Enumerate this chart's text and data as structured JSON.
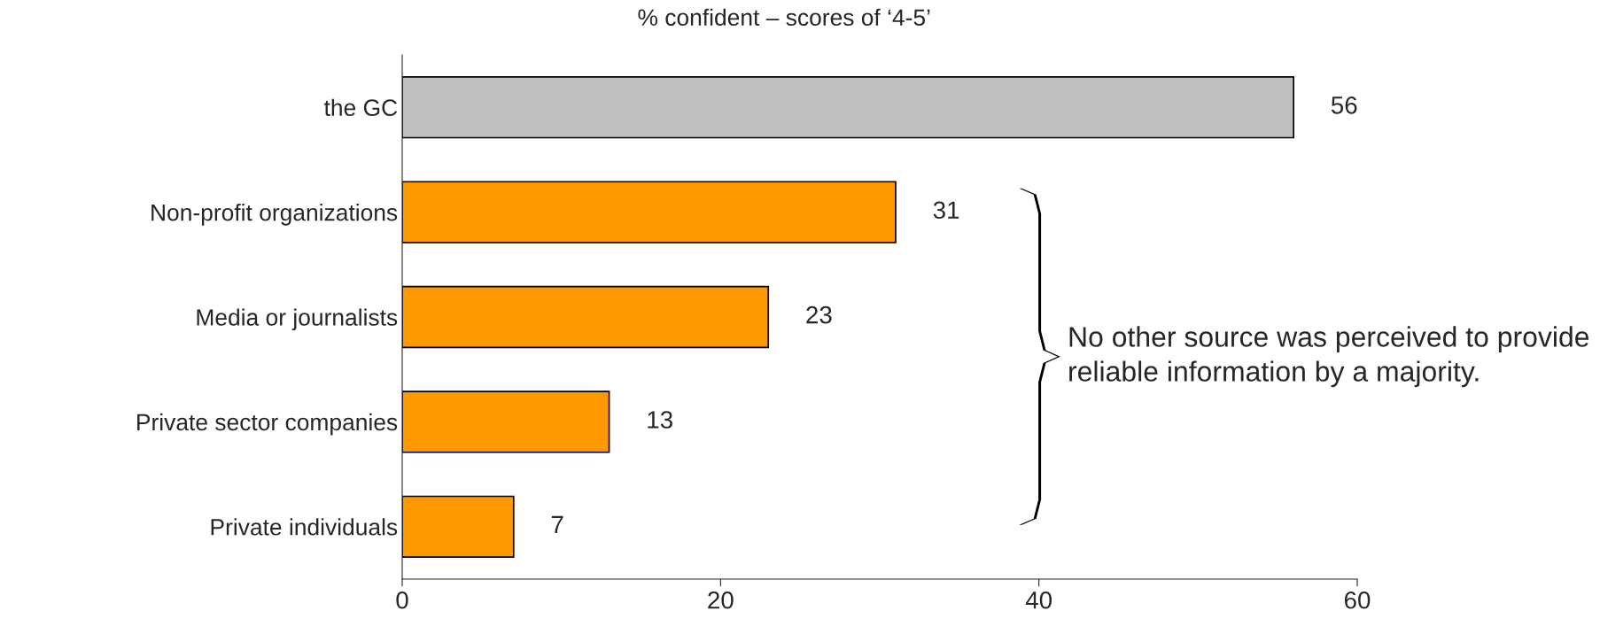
{
  "chart_data": {
    "type": "bar",
    "orientation": "horizontal",
    "title": "% confident – scores of ‘4-5’",
    "categories": [
      "the GC",
      "Non-profit organizations",
      "Media or journalists",
      "Private sector companies",
      "Private individuals"
    ],
    "values": [
      56,
      31,
      23,
      13,
      7
    ],
    "colors": [
      "#c0c0c0",
      "#ff9900",
      "#ff9900",
      "#ff9900",
      "#ff9900"
    ],
    "xlim": [
      0,
      60
    ],
    "xticks": [
      0,
      20,
      40,
      60
    ],
    "data_labels": true,
    "grid": false,
    "legend": false,
    "annotations": [
      "No other source was perceived to provide reliable information by a majority."
    ]
  }
}
